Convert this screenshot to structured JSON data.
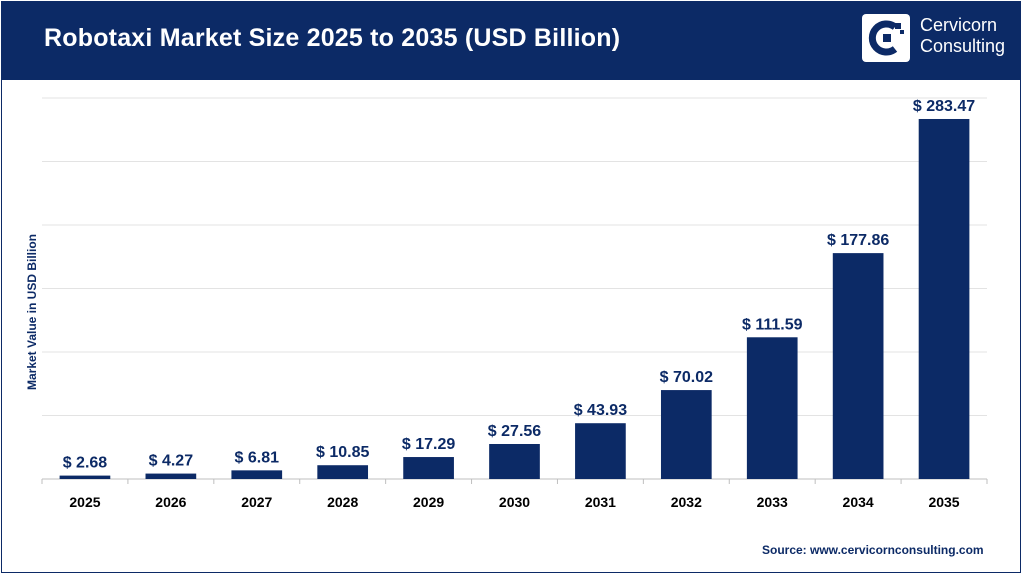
{
  "header": {
    "title": "Robotaxi Market Size 2025 to 2035 (USD Billion)",
    "logo_line1": "Cervicorn",
    "logo_line2": "Consulting"
  },
  "source": "Source: www.cervicornconsulting.com",
  "colors": {
    "brand": "#0c2a66",
    "bar": "#0c2a66",
    "grid": "#e3e3e3"
  },
  "chart_data": {
    "type": "bar",
    "title": "Robotaxi Market Size 2025 to 2035 (USD Billion)",
    "xlabel": "",
    "ylabel": "Market Value in USD Billion",
    "categories": [
      "2025",
      "2026",
      "2027",
      "2028",
      "2029",
      "2030",
      "2031",
      "2032",
      "2033",
      "2034",
      "2035"
    ],
    "values": [
      2.68,
      4.27,
      6.81,
      10.85,
      17.29,
      27.56,
      43.93,
      70.02,
      111.59,
      177.86,
      283.47
    ],
    "value_labels": [
      "$ 2.68",
      "$ 4.27",
      "$ 6.81",
      "$ 10.85",
      "$ 17.29",
      "$ 27.56",
      "$ 43.93",
      "$ 70.02",
      "$ 111.59",
      "$ 177.86",
      "$ 283.47"
    ],
    "ylim": [
      0,
      300
    ],
    "grid": true
  }
}
